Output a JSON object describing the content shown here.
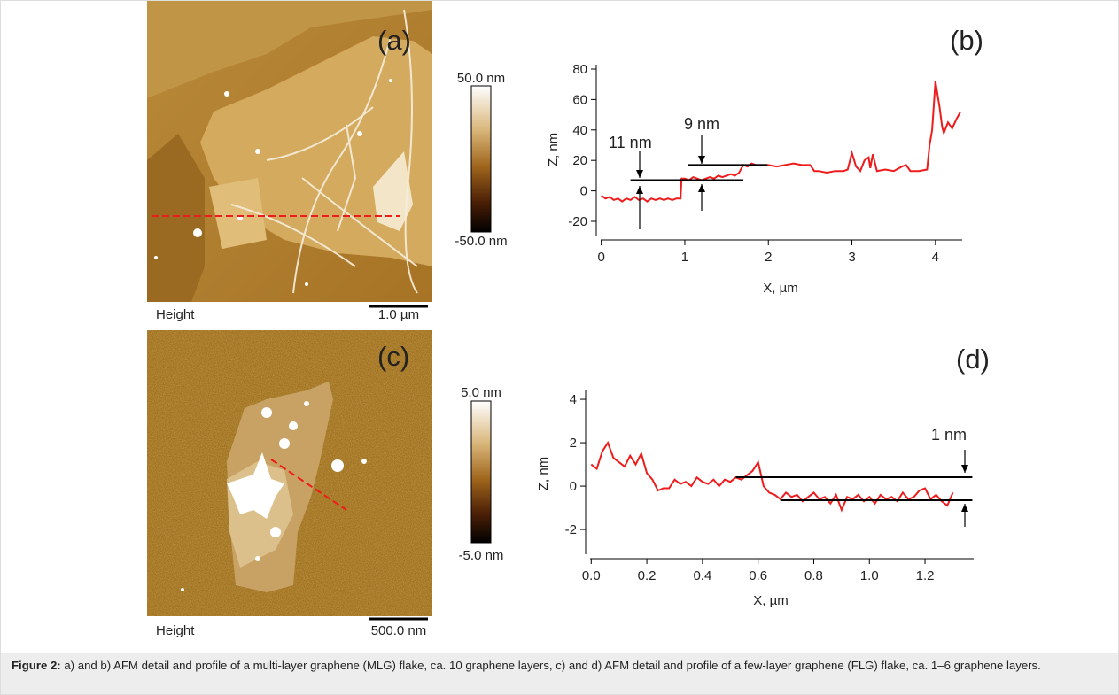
{
  "images": [
    {
      "panel_label": "(a)",
      "channel": "Height",
      "scale_bar": "1.0 µm",
      "colorbar": {
        "max": "50.0 nm",
        "min": "-50.0 nm"
      }
    },
    {
      "panel_label": "(c)",
      "channel": "Height",
      "scale_bar": "500.0 nm",
      "colorbar": {
        "max": "5.0 nm",
        "min": "-5.0 nm"
      }
    }
  ],
  "chart_data": [
    {
      "type": "line",
      "panel_label": "(b)",
      "xlabel": "X, µm",
      "ylabel": "Z, nm",
      "color": "#ee1c1c",
      "x": [
        0,
        0.05,
        0.1,
        0.15,
        0.2,
        0.25,
        0.3,
        0.35,
        0.4,
        0.45,
        0.5,
        0.55,
        0.6,
        0.65,
        0.7,
        0.75,
        0.8,
        0.85,
        0.9,
        0.95,
        0.96,
        1.0,
        1.05,
        1.1,
        1.15,
        1.2,
        1.25,
        1.3,
        1.35,
        1.4,
        1.45,
        1.5,
        1.55,
        1.6,
        1.65,
        1.7,
        1.75,
        1.8,
        1.85,
        1.9,
        2.0,
        2.1,
        2.2,
        2.3,
        2.4,
        2.5,
        2.55,
        2.6,
        2.7,
        2.8,
        2.9,
        2.95,
        3.0,
        3.05,
        3.1,
        3.15,
        3.2,
        3.22,
        3.25,
        3.3,
        3.4,
        3.5,
        3.6,
        3.65,
        3.7,
        3.8,
        3.9,
        3.93,
        3.96,
        4.0,
        4.02,
        4.05,
        4.08,
        4.1,
        4.15,
        4.2,
        4.25,
        4.3
      ],
      "values": [
        -3,
        -5,
        -4,
        -6,
        -5,
        -7,
        -5,
        -6,
        -4,
        -6,
        -5,
        -7,
        -5,
        -6,
        -5,
        -6,
        -5,
        -6,
        -5,
        -5,
        8,
        8,
        7,
        9,
        8,
        7,
        8,
        9,
        8,
        10,
        9,
        10,
        11,
        10,
        12,
        17,
        16,
        18,
        17,
        17,
        17,
        16,
        17,
        18,
        17,
        17,
        13,
        13,
        12,
        13,
        13,
        14,
        25,
        16,
        13,
        20,
        22,
        15,
        24,
        13,
        14,
        13,
        16,
        17,
        13,
        13,
        14,
        30,
        40,
        72,
        65,
        55,
        42,
        38,
        45,
        41,
        47,
        52
      ],
      "xlim": [
        -0.06,
        4.32
      ],
      "ylim": [
        -29.3,
        82.9
      ],
      "xticks": [
        0,
        1,
        2,
        3,
        4
      ],
      "yticks": [
        -20,
        0,
        20,
        40,
        60,
        80
      ],
      "reference_lines": [
        {
          "y": 7,
          "x": [
            0.35,
            1.7
          ]
        },
        {
          "y": 17,
          "x": [
            1.04,
            1.99
          ]
        }
      ],
      "annotations": [
        "11 nm",
        "9 nm"
      ]
    },
    {
      "type": "line",
      "panel_label": "(d)",
      "xlabel": "X, µm",
      "ylabel": "Z, nm",
      "color": "#ee1c1c",
      "x": [
        0,
        0.02,
        0.04,
        0.06,
        0.08,
        0.1,
        0.12,
        0.14,
        0.16,
        0.18,
        0.2,
        0.22,
        0.24,
        0.26,
        0.28,
        0.3,
        0.32,
        0.34,
        0.36,
        0.38,
        0.4,
        0.42,
        0.44,
        0.46,
        0.48,
        0.5,
        0.52,
        0.54,
        0.56,
        0.58,
        0.6,
        0.62,
        0.64,
        0.66,
        0.68,
        0.7,
        0.72,
        0.74,
        0.76,
        0.78,
        0.8,
        0.82,
        0.84,
        0.86,
        0.88,
        0.9,
        0.92,
        0.94,
        0.96,
        0.98,
        1.0,
        1.02,
        1.04,
        1.06,
        1.08,
        1.1,
        1.12,
        1.14,
        1.16,
        1.18,
        1.2,
        1.22,
        1.24,
        1.26,
        1.28,
        1.3
      ],
      "values": [
        1.0,
        0.8,
        1.6,
        2.0,
        1.3,
        1.1,
        0.9,
        1.4,
        1.0,
        1.5,
        0.6,
        0.3,
        -0.2,
        -0.1,
        -0.1,
        0.3,
        0.1,
        0.2,
        0.0,
        0.4,
        0.2,
        0.1,
        0.3,
        0.0,
        0.3,
        0.2,
        0.4,
        0.3,
        0.5,
        0.7,
        1.1,
        0.0,
        -0.3,
        -0.4,
        -0.6,
        -0.3,
        -0.5,
        -0.4,
        -0.7,
        -0.5,
        -0.3,
        -0.6,
        -0.5,
        -0.8,
        -0.4,
        -1.1,
        -0.5,
        -0.6,
        -0.4,
        -0.7,
        -0.5,
        -0.8,
        -0.4,
        -0.6,
        -0.5,
        -0.7,
        -0.3,
        -0.6,
        -0.5,
        -0.2,
        -0.1,
        -0.6,
        -0.4,
        -0.7,
        -0.9,
        -0.3
      ],
      "xlim": [
        -0.02,
        1.375
      ],
      "ylim": [
        -3.14,
        4.41
      ],
      "xticks": [
        {
          "value": 0,
          "label": "0.0"
        },
        0.2,
        0.4,
        0.6,
        0.8,
        {
          "value": 1,
          "label": "1.0"
        },
        1.2
      ],
      "yticks": [
        -2,
        0,
        2,
        4
      ],
      "reference_lines": [
        {
          "y": 0.41,
          "x": [
            0.52,
            1.37
          ]
        },
        {
          "y": -0.65,
          "x": [
            0.68,
            1.37
          ]
        }
      ],
      "annotations": [
        "1 nm"
      ]
    }
  ],
  "caption": {
    "label": "Figure 2:",
    "text": " a) and b) AFM detail and profile of a multi-layer graphene (MLG) flake, ca. 10 graphene layers, c) and d) AFM detail and profile of a few-layer graphene (FLG) flake, ca. 1–6 graphene layers."
  }
}
